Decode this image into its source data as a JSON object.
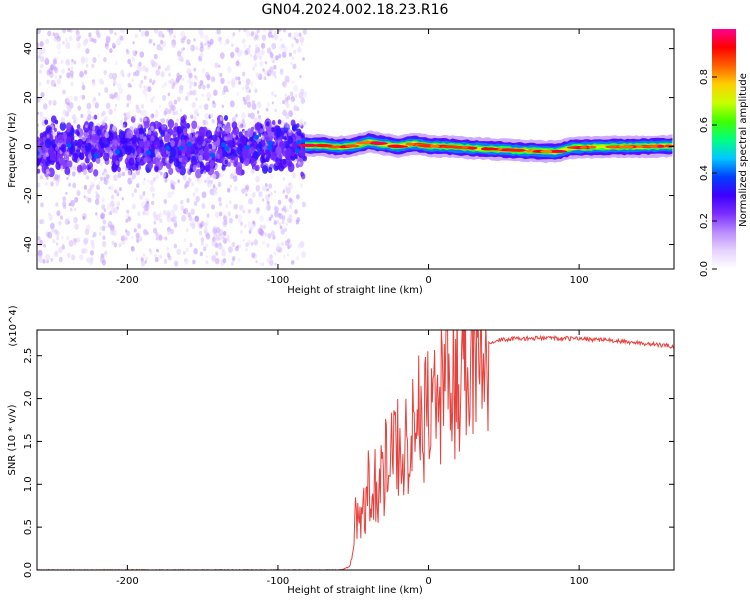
{
  "title": "GN04.2024.002.18.23.R16",
  "chart_data": [
    {
      "type": "heatmap",
      "xlabel": "Height of straight line (km)",
      "ylabel": "Frequency (Hz)",
      "xlim": [
        -260,
        163
      ],
      "ylim": [
        -50,
        48
      ],
      "xticks": [
        -200,
        -100,
        0,
        100
      ],
      "yticks": [
        -40,
        -20,
        0,
        20,
        40
      ],
      "colorbar": {
        "label": "Normalized spectral amplitude",
        "range": [
          0,
          1
        ],
        "ticks": [
          "0.0",
          "0.2",
          "0.4",
          "0.6",
          "0.8"
        ],
        "colormap": [
          "#ffffff",
          "#e6d2ff",
          "#b98cff",
          "#7a2dff",
          "#3d00ff",
          "#0040ff",
          "#00c8ff",
          "#00ff80",
          "#40ff00",
          "#c8ff00",
          "#ffd000",
          "#ff6000",
          "#ff0000",
          "#ff0090"
        ]
      },
      "noise_region": {
        "x_range": [
          -260,
          -82
        ],
        "freq_spread": 48,
        "core_spread": 9
      },
      "signal_track": [
        [
          -82,
          0.5
        ],
        [
          -70,
          0.4
        ],
        [
          -60,
          -0.3
        ],
        [
          -50,
          0.3
        ],
        [
          -40,
          2.0
        ],
        [
          -30,
          1.0
        ],
        [
          -20,
          0.0
        ],
        [
          -10,
          1.2
        ],
        [
          0,
          0.2
        ],
        [
          10,
          0.1
        ],
        [
          20,
          -0.3
        ],
        [
          40,
          -1.0
        ],
        [
          60,
          -1.6
        ],
        [
          75,
          -2.0
        ],
        [
          85,
          -2.1
        ],
        [
          95,
          -0.5
        ],
        [
          110,
          -0.2
        ],
        [
          130,
          -0.1
        ],
        [
          163,
          0.2
        ]
      ]
    },
    {
      "type": "line",
      "xlabel": "Height of straight line (km)",
      "ylabel": "SNR (10 * v/v)",
      "y_multiplier": "(x10^4)",
      "xlim": [
        -260,
        163
      ],
      "ylim": [
        0,
        2.8
      ],
      "xticks": [
        -200,
        -100,
        0,
        100
      ],
      "yticks": [
        "0.0",
        "0.5",
        "1.0",
        "1.5",
        "2.0",
        "2.5"
      ],
      "series": [
        {
          "color": "#e8413c",
          "points": [
            [
              -260,
              0.0
            ],
            [
              -60,
              0.0
            ],
            [
              -55,
              0.02
            ],
            [
              -52,
              0.08
            ],
            [
              -50,
              0.3
            ],
            [
              -48,
              0.7
            ],
            [
              -46,
              0.5
            ],
            [
              -44,
              0.8
            ],
            [
              -42,
              0.6
            ],
            [
              -40,
              1.0
            ],
            [
              -38,
              0.7
            ],
            [
              -36,
              1.1
            ],
            [
              -34,
              0.9
            ],
            [
              -32,
              1.2
            ],
            [
              -30,
              1.0
            ],
            [
              -28,
              1.3
            ],
            [
              -26,
              1.1
            ],
            [
              -24,
              1.4
            ],
            [
              -22,
              1.3
            ],
            [
              -20,
              1.5
            ],
            [
              -18,
              1.4
            ],
            [
              -16,
              1.55
            ],
            [
              -14,
              1.5
            ],
            [
              -12,
              1.6
            ],
            [
              -10,
              1.65
            ],
            [
              -8,
              1.7
            ],
            [
              -6,
              1.75
            ],
            [
              -4,
              1.8
            ],
            [
              -2,
              1.85
            ],
            [
              0,
              1.9
            ],
            [
              5,
              2.0
            ],
            [
              10,
              2.1
            ],
            [
              15,
              2.25
            ],
            [
              20,
              2.35
            ],
            [
              25,
              2.45
            ],
            [
              30,
              2.55
            ],
            [
              35,
              2.62
            ],
            [
              40,
              2.66
            ],
            [
              50,
              2.69
            ],
            [
              60,
              2.7
            ],
            [
              70,
              2.7
            ],
            [
              80,
              2.71
            ],
            [
              90,
              2.7
            ],
            [
              100,
              2.7
            ],
            [
              110,
              2.69
            ],
            [
              120,
              2.68
            ],
            [
              130,
              2.66
            ],
            [
              140,
              2.65
            ],
            [
              150,
              2.63
            ],
            [
              163,
              2.61
            ]
          ]
        }
      ]
    }
  ]
}
